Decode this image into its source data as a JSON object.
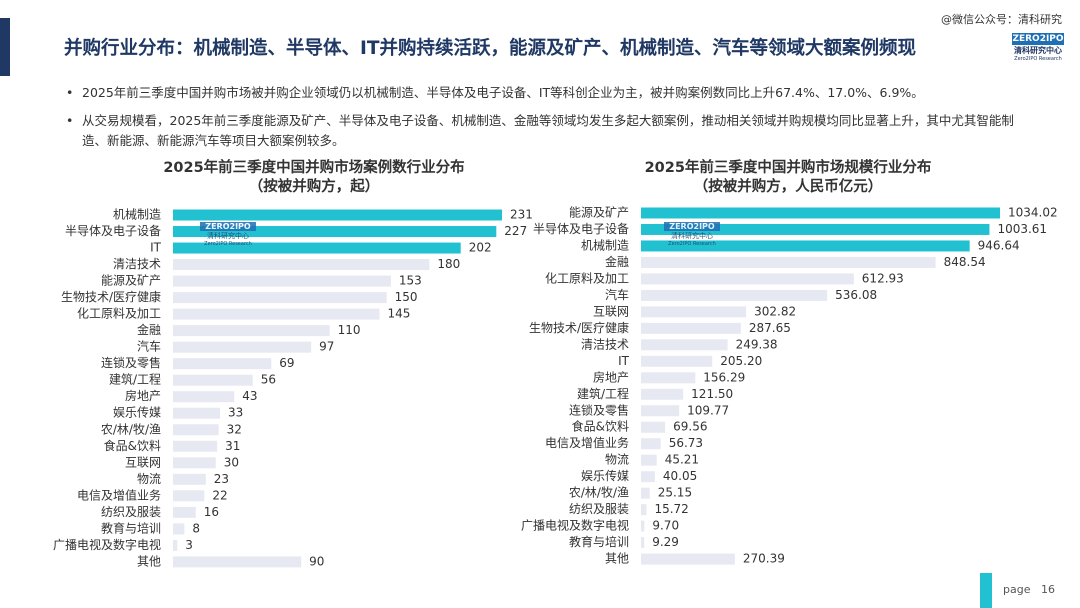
{
  "header": {
    "title": "并购行业分布：机械制造、半导体、IT并购持续活跃，能源及矿产、机械制造、汽车等领域大额案例频现",
    "watermark": "@微信公众号：清科研究",
    "logo_mark": "ZERO2IPO",
    "logo_cn": "清科研究中心",
    "logo_en": "Zero2IPO Research"
  },
  "bullets": [
    "2025年前三季度中国并购市场被并购企业领域仍以机械制造、半导体及电子设备、IT等科创企业为主，被并购案例数同比上升67.4%、17.0%、6.9%。",
    "从交易规模看，2025年前三季度能源及矿产、半导体及电子设备、机械制造、金融等领域均发生多起大额案例，推动相关领域并购规模均同比显著上升，其中尤其智能制造、新能源、新能源汽车等项目大额案例较多。"
  ],
  "footer": {
    "page_label": "page",
    "page_number": 16
  },
  "chart_data": [
    {
      "type": "hbar",
      "title": "2025年前三季度中国并购市场案例数行业分布",
      "subtitle": "（按被并购方，起）",
      "categories": [
        "机械制造",
        "半导体及电子设备",
        "IT",
        "清洁技术",
        "能源及矿产",
        "生物技术/医疗健康",
        "化工原料及加工",
        "金融",
        "汽车",
        "连锁及零售",
        "建筑/工程",
        "房地产",
        "娱乐传媒",
        "农/林/牧/渔",
        "食品&饮料",
        "互联网",
        "物流",
        "电信及增值业务",
        "纺织及服装",
        "教育与培训",
        "广播电视及数字电视",
        "其他"
      ],
      "values": [
        231,
        227,
        202,
        180,
        153,
        150,
        145,
        110,
        97,
        69,
        56,
        43,
        33,
        32,
        31,
        30,
        23,
        22,
        16,
        8,
        3,
        90
      ],
      "colors": [
        "#22c1d1",
        "#22c1d1",
        "#22c1d1",
        "#e6e9f2",
        "#e6e9f2",
        "#e6e9f2",
        "#e6e9f2",
        "#e6e9f2",
        "#e6e9f2",
        "#e6e9f2",
        "#e6e9f2",
        "#e6e9f2",
        "#e6e9f2",
        "#e6e9f2",
        "#e6e9f2",
        "#e6e9f2",
        "#e6e9f2",
        "#e6e9f2",
        "#e6e9f2",
        "#e6e9f2",
        "#e6e9f2",
        "#e6e9f2"
      ]
    },
    {
      "type": "hbar",
      "title": "2025年前三季度中国并购市场规模行业分布",
      "subtitle": "（按被并购方，人民币亿元）",
      "categories": [
        "能源及矿产",
        "半导体及电子设备",
        "机械制造",
        "金融",
        "化工原料及加工",
        "汽车",
        "互联网",
        "生物技术/医疗健康",
        "清洁技术",
        "IT",
        "房地产",
        "建筑/工程",
        "连锁及零售",
        "食品&饮料",
        "电信及增值业务",
        "物流",
        "娱乐传媒",
        "农/林/牧/渔",
        "纺织及服装",
        "广播电视及数字电视",
        "教育与培训",
        "其他"
      ],
      "values": [
        1034.02,
        1003.61,
        946.64,
        848.54,
        612.93,
        536.08,
        302.82,
        287.65,
        249.38,
        205.2,
        156.29,
        121.5,
        109.77,
        69.56,
        56.73,
        45.21,
        40.05,
        25.15,
        15.72,
        9.7,
        9.29,
        270.39
      ],
      "value_labels": [
        "1034.02",
        "1003.61",
        "946.64",
        "848.54",
        "612.93",
        "536.08",
        "302.82",
        "287.65",
        "249.38",
        "205.20",
        "156.29",
        "121.50",
        "109.77",
        "69.56",
        "56.73",
        "45.21",
        "40.05",
        "25.15",
        "15.72",
        "9.70",
        "9.29",
        "270.39"
      ],
      "colors": [
        "#22c1d1",
        "#22c1d1",
        "#22c1d1",
        "#e6e9f2",
        "#e6e9f2",
        "#e6e9f2",
        "#e6e9f2",
        "#e6e9f2",
        "#e6e9f2",
        "#e6e9f2",
        "#e6e9f2",
        "#e6e9f2",
        "#e6e9f2",
        "#e6e9f2",
        "#e6e9f2",
        "#e6e9f2",
        "#e6e9f2",
        "#e6e9f2",
        "#e6e9f2",
        "#e6e9f2",
        "#e6e9f2",
        "#e6e9f2"
      ]
    }
  ]
}
